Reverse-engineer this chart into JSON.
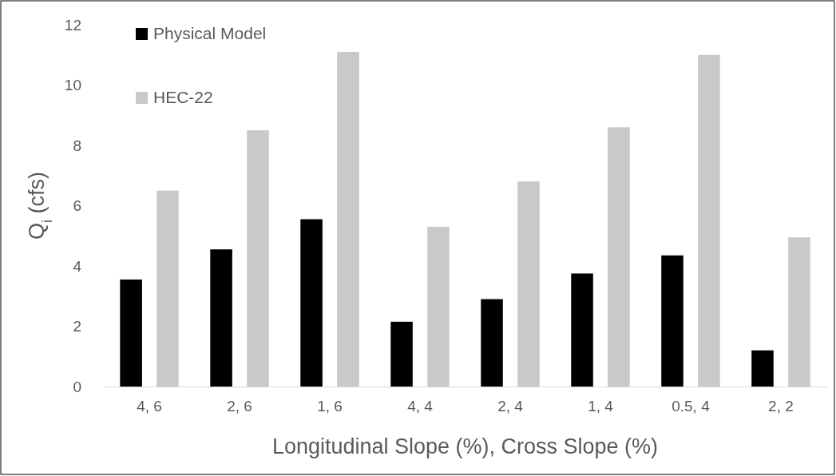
{
  "chart_data": {
    "type": "bar",
    "xlabel": "Longitudinal Slope (%), Cross Slope (%)",
    "ylabel": "Q$_{i}$ (cfs)",
    "categories": [
      "4, 6",
      "2, 6",
      "1, 6",
      "4, 4",
      "2, 4",
      "1, 4",
      "0.5, 4",
      "2, 2"
    ],
    "series": [
      {
        "name": "Physical Model",
        "color": "#000000",
        "values": [
          3.55,
          4.55,
          5.55,
          2.15,
          2.9,
          3.75,
          4.35,
          1.2
        ]
      },
      {
        "name": "HEC-22",
        "color": "#c9c9c9",
        "values": [
          6.5,
          8.5,
          11.1,
          5.3,
          6.8,
          8.6,
          11.0,
          4.95
        ]
      }
    ],
    "ylim": [
      0,
      12
    ],
    "yticks": [
      0,
      2,
      4,
      6,
      8,
      10,
      12
    ],
    "legend": "top left"
  }
}
